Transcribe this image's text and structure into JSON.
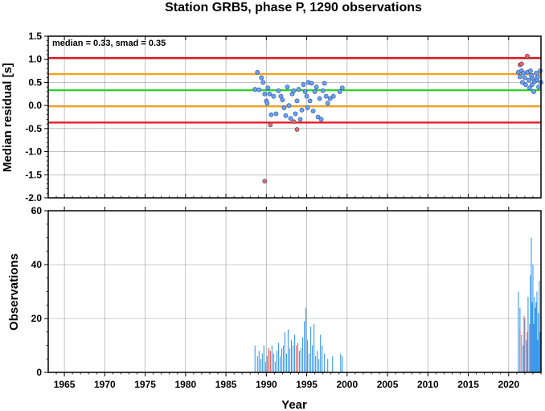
{
  "chart_data": [
    {
      "type": "scatter",
      "title": "Station GRB5, phase P, 1290 observations",
      "ylabel": "Median residual [s]",
      "ylim": [
        -2.0,
        1.5
      ],
      "xlim": [
        1963,
        2024
      ],
      "yticks": [
        "1.5",
        "1.0",
        "0.5",
        "0.0",
        "-0.5",
        "-1.0",
        "-1.5",
        "-2.0"
      ],
      "annotation": "median = 0.33, smad = 0.35",
      "reference_lines": [
        {
          "y": 1.03,
          "color": "#e8121e",
          "role": "median + 2 smad"
        },
        {
          "y": 0.68,
          "color": "#f5a11c",
          "role": "median + 1 smad"
        },
        {
          "y": 0.33,
          "color": "#1ed41e",
          "role": "median"
        },
        {
          "y": -0.02,
          "color": "#f5a11c",
          "role": "median - 1 smad"
        },
        {
          "y": -0.37,
          "color": "#e8121e",
          "role": "median - 2 smad"
        }
      ],
      "grid": true,
      "series": [
        {
          "color": "#6aa1f0",
          "points": [
            [
              1988.6,
              0.35
            ],
            [
              1988.9,
              0.72
            ],
            [
              1989.1,
              0.34
            ],
            [
              1989.4,
              0.6
            ],
            [
              1989.6,
              0.5
            ],
            [
              1989.8,
              0.25
            ],
            [
              1990.0,
              0.1
            ],
            [
              1990.1,
              0.05
            ],
            [
              1990.2,
              0.38
            ],
            [
              1990.4,
              0.25
            ],
            [
              1990.6,
              -0.2
            ],
            [
              1990.9,
              0.2
            ],
            [
              1991.2,
              -0.18
            ],
            [
              1991.5,
              0.32
            ],
            [
              1991.8,
              0.2
            ],
            [
              1992.0,
              0.12
            ],
            [
              1992.2,
              -0.05
            ],
            [
              1992.4,
              -0.22
            ],
            [
              1992.6,
              0.4
            ],
            [
              1992.8,
              0.0
            ],
            [
              1993.0,
              -0.28
            ],
            [
              1993.2,
              0.25
            ],
            [
              1993.4,
              0.32
            ],
            [
              1993.6,
              -0.18
            ],
            [
              1993.8,
              0.1
            ],
            [
              1994.0,
              0.35
            ],
            [
              1994.2,
              -0.3
            ],
            [
              1994.4,
              -0.1
            ],
            [
              1994.6,
              0.45
            ],
            [
              1994.8,
              0.3
            ],
            [
              1995.0,
              0.2
            ],
            [
              1995.1,
              -0.05
            ],
            [
              1995.2,
              0.5
            ],
            [
              1995.4,
              0.1
            ],
            [
              1995.6,
              0.48
            ],
            [
              1995.8,
              -0.12
            ],
            [
              1996.0,
              0.3
            ],
            [
              1996.2,
              0.4
            ],
            [
              1996.4,
              -0.25
            ],
            [
              1996.6,
              0.15
            ],
            [
              1996.8,
              -0.3
            ],
            [
              1997.0,
              0.32
            ],
            [
              1997.2,
              0.48
            ],
            [
              1997.4,
              0.2
            ],
            [
              1997.6,
              0.05
            ],
            [
              1997.9,
              0.15
            ],
            [
              1998.3,
              0.2
            ],
            [
              1999.1,
              0.3
            ],
            [
              1999.4,
              0.38
            ],
            [
              2021.2,
              0.72
            ],
            [
              2021.4,
              0.62
            ],
            [
              2021.6,
              0.75
            ],
            [
              2021.7,
              0.5
            ],
            [
              2021.8,
              0.7
            ],
            [
              2022.0,
              0.6
            ],
            [
              2022.1,
              0.45
            ],
            [
              2022.3,
              0.72
            ],
            [
              2022.5,
              0.55
            ],
            [
              2022.6,
              0.38
            ],
            [
              2022.7,
              0.75
            ],
            [
              2022.8,
              0.65
            ],
            [
              2022.9,
              0.45
            ],
            [
              2023.0,
              0.58
            ],
            [
              2023.1,
              0.3
            ],
            [
              2023.2,
              0.52
            ],
            [
              2023.4,
              0.7
            ],
            [
              2023.5,
              0.55
            ],
            [
              2023.6,
              0.62
            ],
            [
              2023.7,
              0.4
            ],
            [
              2023.9,
              0.75
            ],
            [
              2024.0,
              0.5
            ]
          ]
        },
        {
          "color": "#f0645a",
          "points": [
            [
              1989.8,
              -1.64
            ],
            [
              1990.5,
              -0.42
            ],
            [
              1993.4,
              -0.35
            ],
            [
              1993.8,
              -0.52
            ],
            [
              2021.4,
              0.88
            ],
            [
              2021.6,
              0.9
            ],
            [
              2022.3,
              1.07
            ]
          ]
        }
      ]
    },
    {
      "type": "bar",
      "ylabel": "Observations",
      "xlabel": "Year",
      "ylim": [
        0,
        60
      ],
      "xlim": [
        1963,
        2024
      ],
      "yticks": [
        "60",
        "40",
        "20",
        "0"
      ],
      "xticks": [
        "1965",
        "1970",
        "1975",
        "1980",
        "1985",
        "1990",
        "1995",
        "2000",
        "2005",
        "2010",
        "2015",
        "2020"
      ],
      "grid": true,
      "series": [
        {
          "color": "#3a9bef",
          "bars": [
            [
              1988.6,
              10
            ],
            [
              1988.9,
              6
            ],
            [
              1989.1,
              8
            ],
            [
              1989.3,
              5
            ],
            [
              1989.5,
              7
            ],
            [
              1989.7,
              10
            ],
            [
              1989.9,
              4
            ],
            [
              1990.1,
              6
            ],
            [
              1990.3,
              9
            ],
            [
              1990.5,
              8
            ],
            [
              1990.7,
              10
            ],
            [
              1990.9,
              7
            ],
            [
              1991.1,
              4
            ],
            [
              1991.3,
              8
            ],
            [
              1991.5,
              11
            ],
            [
              1991.7,
              6
            ],
            [
              1991.9,
              9
            ],
            [
              1992.1,
              10
            ],
            [
              1992.3,
              15
            ],
            [
              1992.5,
              7
            ],
            [
              1992.7,
              16
            ],
            [
              1992.9,
              9
            ],
            [
              1993.1,
              12
            ],
            [
              1993.3,
              10
            ],
            [
              1993.5,
              14
            ],
            [
              1993.7,
              6
            ],
            [
              1993.9,
              11
            ],
            [
              1994.1,
              8
            ],
            [
              1994.3,
              9
            ],
            [
              1994.5,
              13
            ],
            [
              1994.7,
              19
            ],
            [
              1994.9,
              24
            ],
            [
              1995.1,
              12
            ],
            [
              1995.3,
              7
            ],
            [
              1995.5,
              17
            ],
            [
              1995.7,
              10
            ],
            [
              1995.9,
              18
            ],
            [
              1996.1,
              6
            ],
            [
              1996.3,
              8
            ],
            [
              1996.5,
              5
            ],
            [
              1996.7,
              14
            ],
            [
              1996.9,
              10
            ],
            [
              1997.2,
              7
            ],
            [
              1997.6,
              5
            ],
            [
              1998.2,
              6
            ],
            [
              1999.2,
              7
            ],
            [
              1999.4,
              6
            ],
            [
              2021.2,
              30
            ],
            [
              2021.4,
              24
            ],
            [
              2021.6,
              14
            ],
            [
              2021.8,
              10
            ],
            [
              2022.0,
              20
            ],
            [
              2022.2,
              12
            ],
            [
              2022.4,
              28
            ],
            [
              2022.6,
              17
            ],
            [
              2022.7,
              36
            ],
            [
              2022.8,
              50
            ],
            [
              2022.9,
              26
            ],
            [
              2023.0,
              40
            ],
            [
              2023.1,
              18
            ],
            [
              2023.2,
              28
            ],
            [
              2023.3,
              24
            ],
            [
              2023.4,
              26
            ],
            [
              2023.5,
              30
            ],
            [
              2023.6,
              12
            ],
            [
              2023.7,
              22
            ],
            [
              2023.8,
              34
            ],
            [
              2023.9,
              15
            ],
            [
              2024.0,
              36
            ]
          ]
        },
        {
          "color": "#f0645a",
          "bars": [
            [
              1990.3,
              9
            ],
            [
              1990.5,
              8
            ],
            [
              1993.7,
              10
            ],
            [
              1993.9,
              9
            ],
            [
              2021.4,
              16
            ],
            [
              2021.9,
              21
            ],
            [
              2022.3,
              15
            ],
            [
              2022.6,
              18
            ]
          ]
        }
      ]
    }
  ]
}
